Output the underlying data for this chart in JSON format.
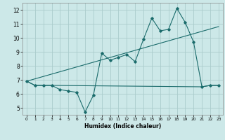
{
  "title": "",
  "xlabel": "Humidex (Indice chaleur)",
  "bg_color": "#cce8e8",
  "grid_color": "#aacccc",
  "line_color": "#1a6b6b",
  "xlim": [
    -0.5,
    23.5
  ],
  "ylim": [
    4.5,
    12.5
  ],
  "xticks": [
    0,
    1,
    2,
    3,
    4,
    5,
    6,
    7,
    8,
    9,
    10,
    11,
    12,
    13,
    14,
    15,
    16,
    17,
    18,
    19,
    20,
    21,
    22,
    23
  ],
  "yticks": [
    5,
    6,
    7,
    8,
    9,
    10,
    11,
    12
  ],
  "line1_x": [
    0,
    1,
    2,
    3,
    4,
    5,
    6,
    7,
    8,
    9,
    10,
    11,
    12,
    13,
    14,
    15,
    16,
    17,
    18,
    19,
    20,
    21,
    22,
    23
  ],
  "line1_y": [
    6.9,
    6.6,
    6.6,
    6.6,
    6.3,
    6.2,
    6.1,
    4.7,
    5.9,
    8.9,
    8.4,
    8.6,
    8.8,
    8.3,
    9.9,
    11.4,
    10.5,
    10.6,
    12.1,
    11.1,
    9.7,
    6.5,
    6.6,
    6.6
  ],
  "line2_x": [
    0,
    1,
    2,
    3,
    21,
    22,
    23
  ],
  "line2_y": [
    6.9,
    6.6,
    6.6,
    6.6,
    6.5,
    6.6,
    6.6
  ],
  "line3_x": [
    0,
    23
  ],
  "line3_y": [
    6.9,
    10.8
  ]
}
